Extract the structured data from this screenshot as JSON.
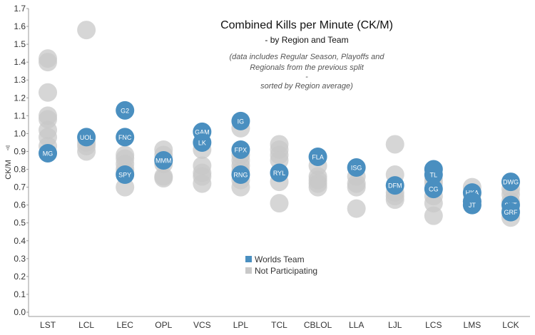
{
  "chart_data": {
    "type": "scatter",
    "title": "Combined Kills per Minute (CK/M)",
    "subtitle": "- by Region and Team",
    "note_lines": [
      "(data includes Regular Season, Playoffs and",
      "Regionals from the previous split",
      "-",
      "sorted by Region average)"
    ],
    "ylabel": "CK/M",
    "xlabel": "",
    "ylim": [
      0,
      1.7
    ],
    "yticks": [
      "0.0",
      "0.1",
      "0.2",
      "0.3",
      "0.4",
      "0.5",
      "0.6",
      "0.7",
      "0.8",
      "0.9",
      "1.0",
      "1.1",
      "1.2",
      "1.3",
      "1.4",
      "1.5",
      "1.6",
      "1.7"
    ],
    "categories": [
      "LST",
      "LCL",
      "LEC",
      "OPL",
      "VCS",
      "LPL",
      "TCL",
      "CBLOL",
      "LLA",
      "LJL",
      "LCS",
      "LMS",
      "LCK"
    ],
    "legend": [
      {
        "name": "Worlds Team",
        "color": "#4a8fc0"
      },
      {
        "name": "Not Participating",
        "color": "#c8c8c8"
      }
    ],
    "colors": {
      "worlds": "#4a8fc0",
      "other": "#c8c8c8"
    },
    "series": [
      {
        "name": "Not Participating",
        "points": [
          {
            "x": "LST",
            "y": 1.42
          },
          {
            "x": "LST",
            "y": 1.4
          },
          {
            "x": "LST",
            "y": 1.23
          },
          {
            "x": "LST",
            "y": 1.1
          },
          {
            "x": "LST",
            "y": 1.08
          },
          {
            "x": "LST",
            "y": 1.02
          },
          {
            "x": "LST",
            "y": 0.98
          },
          {
            "x": "LST",
            "y": 0.93
          },
          {
            "x": "LCL",
            "y": 1.58
          },
          {
            "x": "LCL",
            "y": 0.95
          },
          {
            "x": "LCL",
            "y": 0.93
          },
          {
            "x": "LCL",
            "y": 0.9
          },
          {
            "x": "LEC",
            "y": 0.88
          },
          {
            "x": "LEC",
            "y": 0.86
          },
          {
            "x": "LEC",
            "y": 0.83
          },
          {
            "x": "LEC",
            "y": 0.8
          },
          {
            "x": "LEC",
            "y": 0.78
          },
          {
            "x": "LEC",
            "y": 0.7
          },
          {
            "x": "OPL",
            "y": 0.91
          },
          {
            "x": "OPL",
            "y": 0.88
          },
          {
            "x": "OPL",
            "y": 0.83
          },
          {
            "x": "OPL",
            "y": 0.76
          },
          {
            "x": "OPL",
            "y": 0.75
          },
          {
            "x": "VCS",
            "y": 0.91
          },
          {
            "x": "VCS",
            "y": 0.82
          },
          {
            "x": "VCS",
            "y": 0.78
          },
          {
            "x": "VCS",
            "y": 0.76
          },
          {
            "x": "VCS",
            "y": 0.72
          },
          {
            "x": "LPL",
            "y": 1.03
          },
          {
            "x": "LPL",
            "y": 0.88
          },
          {
            "x": "LPL",
            "y": 0.85
          },
          {
            "x": "LPL",
            "y": 0.82
          },
          {
            "x": "LPL",
            "y": 0.79
          },
          {
            "x": "LPL",
            "y": 0.74
          },
          {
            "x": "LPL",
            "y": 0.7
          },
          {
            "x": "TCL",
            "y": 0.94
          },
          {
            "x": "TCL",
            "y": 0.91
          },
          {
            "x": "TCL",
            "y": 0.88
          },
          {
            "x": "TCL",
            "y": 0.85
          },
          {
            "x": "TCL",
            "y": 0.78
          },
          {
            "x": "TCL",
            "y": 0.73
          },
          {
            "x": "TCL",
            "y": 0.61
          },
          {
            "x": "CBLOL",
            "y": 0.82
          },
          {
            "x": "CBLOL",
            "y": 0.76
          },
          {
            "x": "CBLOL",
            "y": 0.74
          },
          {
            "x": "CBLOL",
            "y": 0.72
          },
          {
            "x": "CBLOL",
            "y": 0.7
          },
          {
            "x": "LLA",
            "y": 0.76
          },
          {
            "x": "LLA",
            "y": 0.72
          },
          {
            "x": "LLA",
            "y": 0.7
          },
          {
            "x": "LLA",
            "y": 0.58
          },
          {
            "x": "LJL",
            "y": 0.94
          },
          {
            "x": "LJL",
            "y": 0.77
          },
          {
            "x": "LJL",
            "y": 0.67
          },
          {
            "x": "LJL",
            "y": 0.65
          },
          {
            "x": "LJL",
            "y": 0.63
          },
          {
            "x": "LCS",
            "y": 0.74
          },
          {
            "x": "LCS",
            "y": 0.72
          },
          {
            "x": "LCS",
            "y": 0.65
          },
          {
            "x": "LCS",
            "y": 0.61
          },
          {
            "x": "LCS",
            "y": 0.54
          },
          {
            "x": "LMS",
            "y": 0.7
          },
          {
            "x": "LMS",
            "y": 0.66
          },
          {
            "x": "LMS",
            "y": 0.62
          },
          {
            "x": "LMS",
            "y": 0.6
          },
          {
            "x": "LCK",
            "y": 0.69
          },
          {
            "x": "LCK",
            "y": 0.66
          },
          {
            "x": "LCK",
            "y": 0.62
          },
          {
            "x": "LCK",
            "y": 0.57
          },
          {
            "x": "LCK",
            "y": 0.53
          }
        ]
      },
      {
        "name": "Worlds Team",
        "points": [
          {
            "x": "LST",
            "y": 0.89,
            "label": "MG"
          },
          {
            "x": "LCL",
            "y": 0.98,
            "label": "UOL"
          },
          {
            "x": "LEC",
            "y": 1.13,
            "label": "G2"
          },
          {
            "x": "LEC",
            "y": 0.98,
            "label": "FNC"
          },
          {
            "x": "LEC",
            "y": 0.77,
            "label": "SPY"
          },
          {
            "x": "OPL",
            "y": 0.85,
            "label": "MMM"
          },
          {
            "x": "VCS",
            "y": 1.01,
            "label": "GAM"
          },
          {
            "x": "VCS",
            "y": 0.95,
            "label": "LK"
          },
          {
            "x": "LPL",
            "y": 1.07,
            "label": "IG"
          },
          {
            "x": "LPL",
            "y": 0.91,
            "label": "FPX"
          },
          {
            "x": "LPL",
            "y": 0.77,
            "label": "RNG"
          },
          {
            "x": "TCL",
            "y": 0.78,
            "label": "RYL"
          },
          {
            "x": "CBLOL",
            "y": 0.87,
            "label": "FLA"
          },
          {
            "x": "LLA",
            "y": 0.81,
            "label": "ISG"
          },
          {
            "x": "LJL",
            "y": 0.71,
            "label": "DFM"
          },
          {
            "x": "LCS",
            "y": 0.8,
            "label": "C9"
          },
          {
            "x": "LCS",
            "y": 0.77,
            "label": "TL"
          },
          {
            "x": "LCS",
            "y": 0.69,
            "label": "CG"
          },
          {
            "x": "LMS",
            "y": 0.67,
            "label": "HKA"
          },
          {
            "x": "LMS",
            "y": 0.62,
            "label": "AHQ"
          },
          {
            "x": "LMS",
            "y": 0.6,
            "label": "JT"
          },
          {
            "x": "LCK",
            "y": 0.73,
            "label": "DWG"
          },
          {
            "x": "LCK",
            "y": 0.6,
            "label": "SKT"
          },
          {
            "x": "LCK",
            "y": 0.56,
            "label": "GRF"
          }
        ]
      }
    ]
  }
}
